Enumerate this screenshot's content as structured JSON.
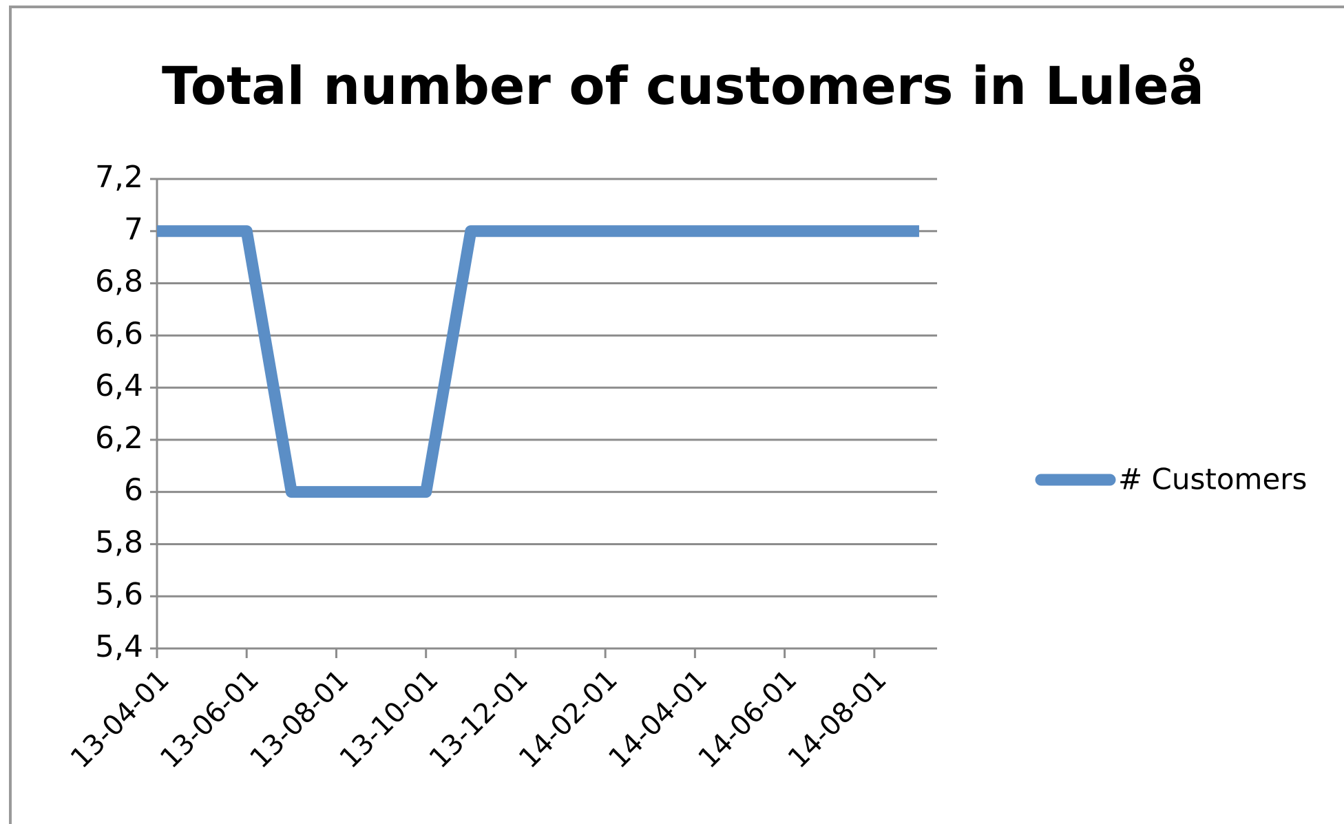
{
  "chart_data": {
    "type": "line",
    "title": "Total number of customers in Luleå",
    "categories": [
      "13-04-01",
      null,
      "13-06-01",
      null,
      "13-08-01",
      null,
      "13-10-01",
      null,
      "13-12-01",
      null,
      "14-02-01",
      null,
      "14-04-01",
      null,
      "14-06-01",
      null,
      "14-08-01",
      null
    ],
    "series": [
      {
        "name": "# Customers",
        "color": "#5b8ec6",
        "values": [
          7,
          7,
          7,
          6,
          6,
          6,
          6,
          7,
          7,
          7,
          7,
          7,
          7,
          7,
          7,
          7,
          7,
          7
        ]
      }
    ],
    "ylim": [
      5.4,
      7.2
    ],
    "yticks": [
      {
        "value": 5.4,
        "label": "5,4"
      },
      {
        "value": 5.6,
        "label": "5,6"
      },
      {
        "value": 5.8,
        "label": "5,8"
      },
      6,
      {
        "value": 6.2,
        "label": "6,2"
      },
      {
        "value": 6.4,
        "label": "6,4"
      },
      {
        "value": 6.6,
        "label": "6,6"
      },
      {
        "value": 6.8,
        "label": "6,8"
      },
      7,
      {
        "value": 7.2,
        "label": "7,2"
      }
    ],
    "grid": true,
    "legend": "right"
  }
}
